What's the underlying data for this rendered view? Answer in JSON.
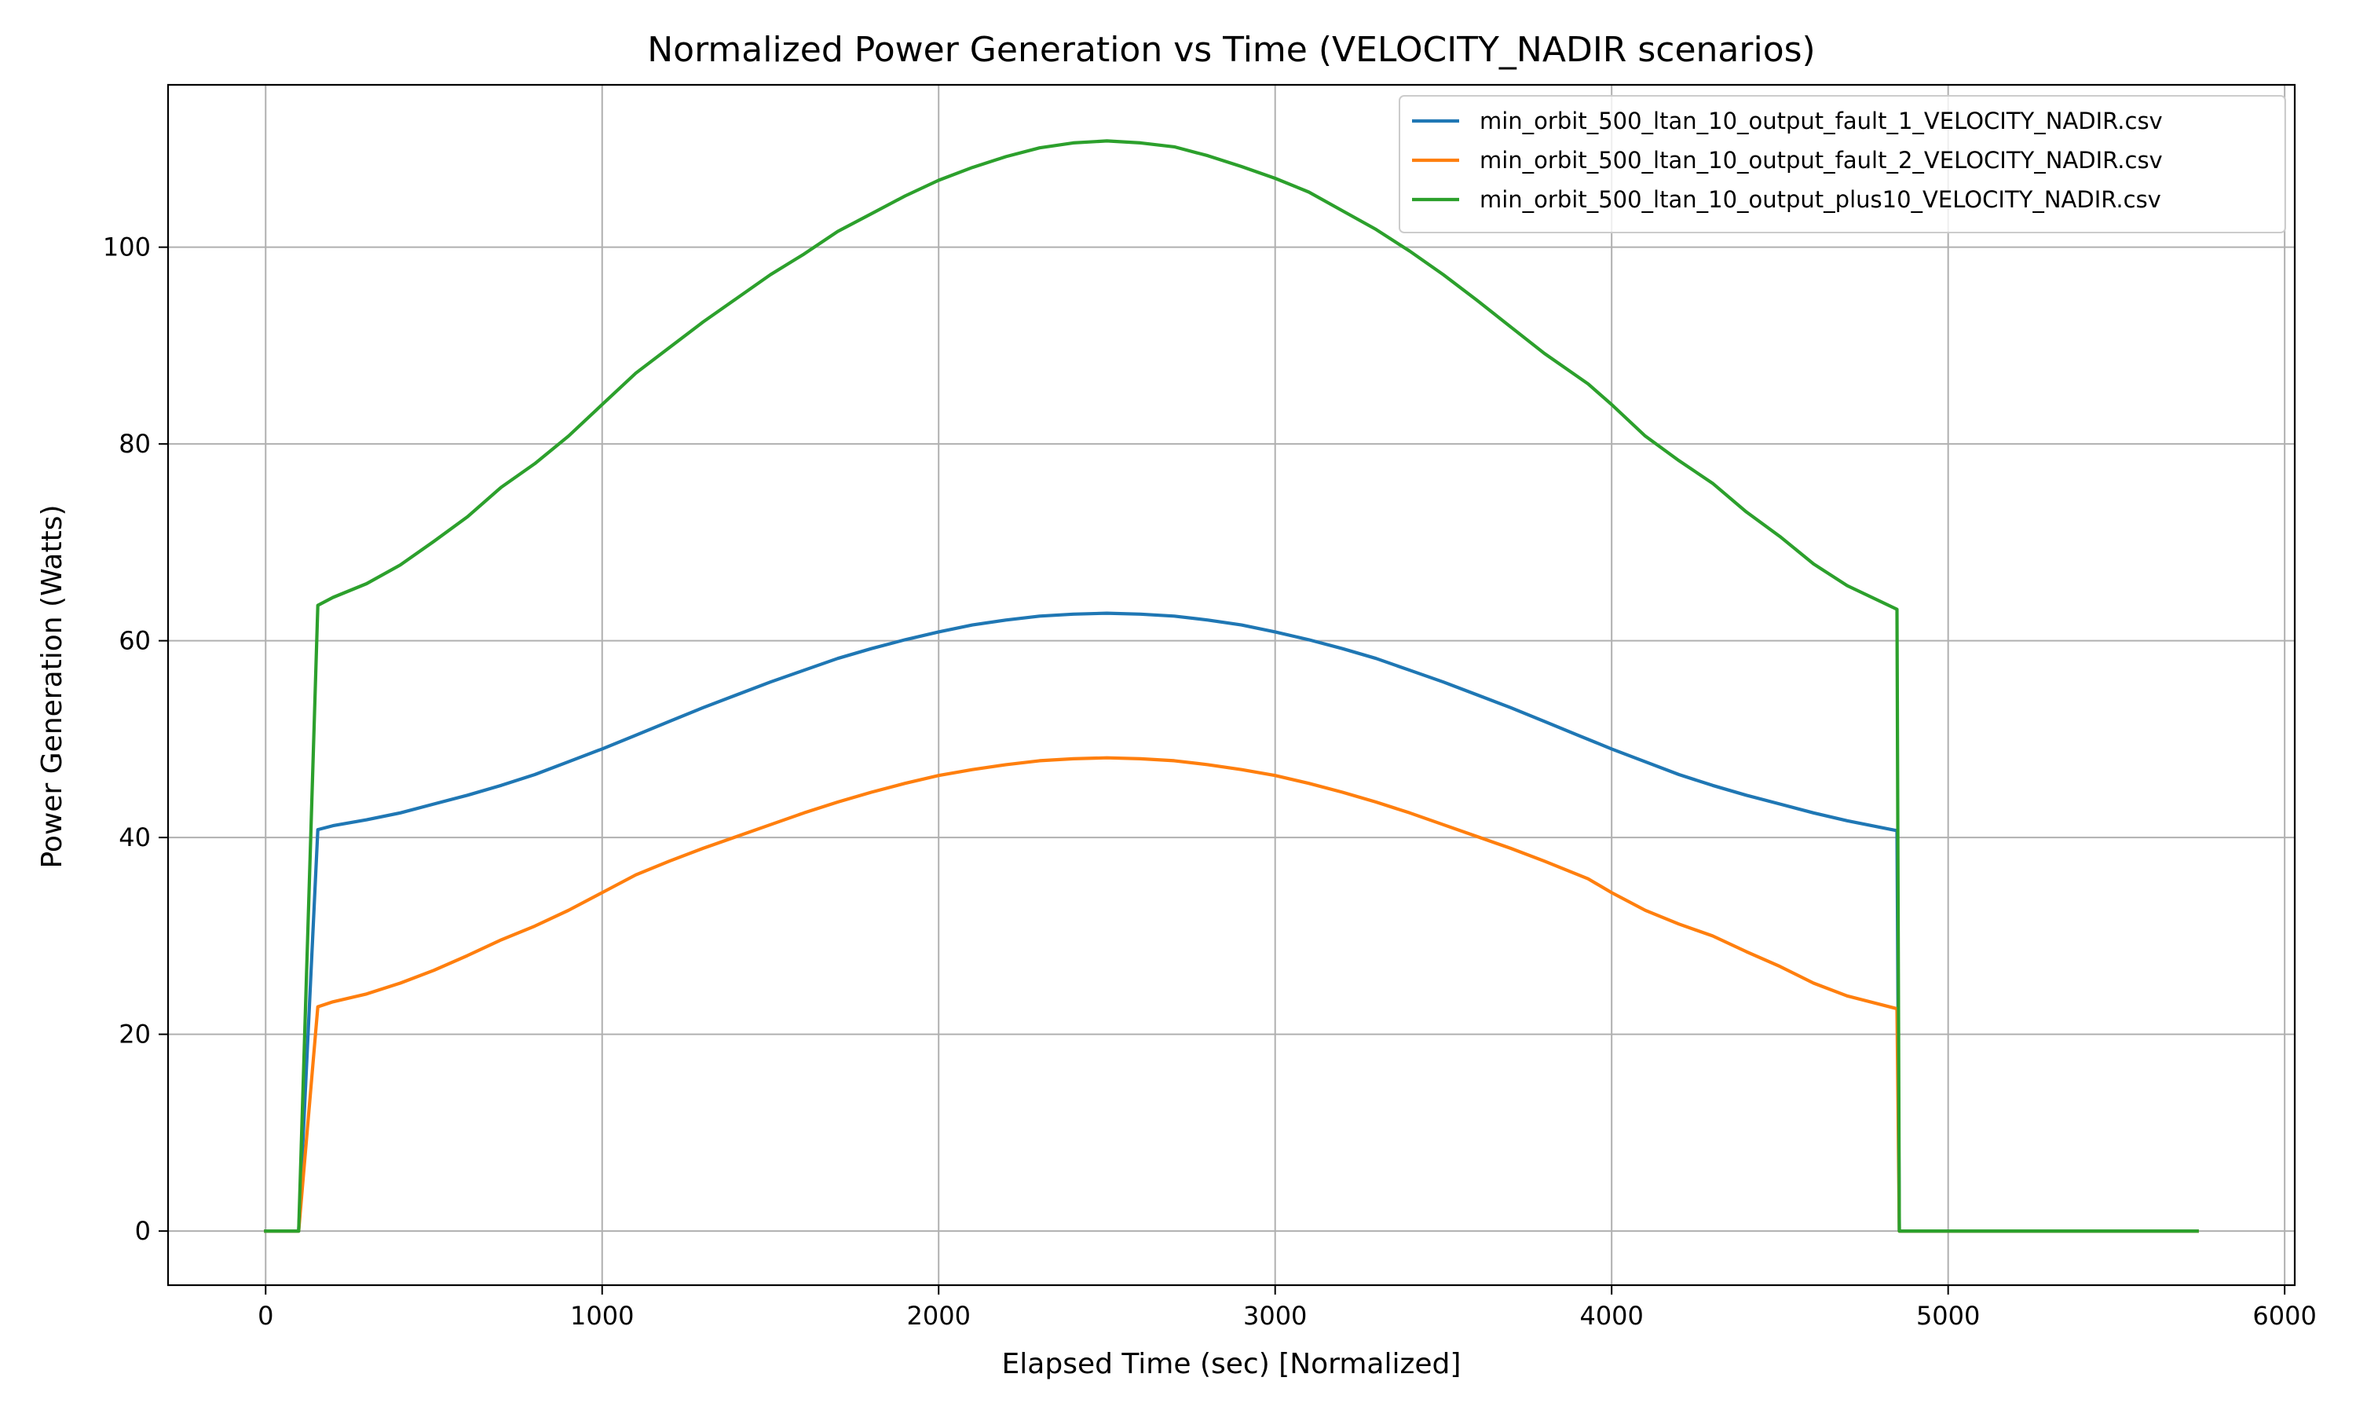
{
  "chart_data": {
    "type": "line",
    "title": "Normalized Power Generation vs Time (VELOCITY_NADIR scenarios)",
    "xlabel": "Elapsed Time (sec) [Normalized]",
    "ylabel": "Power Generation (Watts)",
    "xlim": [
      -290,
      6030
    ],
    "ylim": [
      -5.5,
      116.5
    ],
    "xticks": [
      0,
      1000,
      2000,
      3000,
      4000,
      5000,
      6000
    ],
    "yticks": [
      0,
      20,
      40,
      60,
      80,
      100
    ],
    "grid": true,
    "legend_position": "top-right",
    "series": [
      {
        "name": "min_orbit_500_ltan_10_output_fault_1_VELOCITY_NADIR.csv",
        "color": "#1f77b4",
        "points": [
          [
            0,
            0
          ],
          [
            98,
            0
          ],
          [
            155,
            40.8
          ],
          [
            200,
            41.2
          ],
          [
            300,
            41.8
          ],
          [
            400,
            42.5
          ],
          [
            500,
            43.4
          ],
          [
            600,
            44.3
          ],
          [
            700,
            45.3
          ],
          [
            800,
            46.4
          ],
          [
            900,
            47.7
          ],
          [
            1000,
            49.0
          ],
          [
            1100,
            50.4
          ],
          [
            1200,
            51.8
          ],
          [
            1300,
            53.2
          ],
          [
            1400,
            54.5
          ],
          [
            1500,
            55.8
          ],
          [
            1600,
            57.0
          ],
          [
            1700,
            58.2
          ],
          [
            1800,
            59.2
          ],
          [
            1900,
            60.1
          ],
          [
            2000,
            60.9
          ],
          [
            2100,
            61.6
          ],
          [
            2200,
            62.1
          ],
          [
            2300,
            62.5
          ],
          [
            2400,
            62.7
          ],
          [
            2500,
            62.8
          ],
          [
            2600,
            62.7
          ],
          [
            2700,
            62.5
          ],
          [
            2800,
            62.1
          ],
          [
            2900,
            61.6
          ],
          [
            3000,
            60.9
          ],
          [
            3100,
            60.1
          ],
          [
            3200,
            59.2
          ],
          [
            3300,
            58.2
          ],
          [
            3400,
            57.0
          ],
          [
            3500,
            55.8
          ],
          [
            3600,
            54.5
          ],
          [
            3700,
            53.2
          ],
          [
            3800,
            51.8
          ],
          [
            3900,
            50.4
          ],
          [
            4000,
            49.0
          ],
          [
            4100,
            47.7
          ],
          [
            4200,
            46.4
          ],
          [
            4300,
            45.3
          ],
          [
            4400,
            44.3
          ],
          [
            4500,
            43.4
          ],
          [
            4600,
            42.5
          ],
          [
            4700,
            41.7
          ],
          [
            4848,
            40.7
          ],
          [
            4855,
            0
          ],
          [
            5000,
            0
          ],
          [
            5740,
            0
          ]
        ]
      },
      {
        "name": "min_orbit_500_ltan_10_output_fault_2_VELOCITY_NADIR.csv",
        "color": "#ff7f0e",
        "points": [
          [
            0,
            0
          ],
          [
            98,
            0
          ],
          [
            155,
            22.8
          ],
          [
            200,
            23.3
          ],
          [
            300,
            24.1
          ],
          [
            400,
            25.2
          ],
          [
            500,
            26.5
          ],
          [
            600,
            28.0
          ],
          [
            700,
            29.6
          ],
          [
            800,
            31.0
          ],
          [
            900,
            32.6
          ],
          [
            1000,
            34.4
          ],
          [
            1100,
            36.2
          ],
          [
            1200,
            37.6
          ],
          [
            1300,
            38.9
          ],
          [
            1400,
            40.1
          ],
          [
            1500,
            41.3
          ],
          [
            1600,
            42.5
          ],
          [
            1700,
            43.6
          ],
          [
            1800,
            44.6
          ],
          [
            1900,
            45.5
          ],
          [
            2000,
            46.3
          ],
          [
            2100,
            46.9
          ],
          [
            2200,
            47.4
          ],
          [
            2300,
            47.8
          ],
          [
            2400,
            48.0
          ],
          [
            2500,
            48.1
          ],
          [
            2600,
            48.0
          ],
          [
            2700,
            47.8
          ],
          [
            2800,
            47.4
          ],
          [
            2900,
            46.9
          ],
          [
            3000,
            46.3
          ],
          [
            3100,
            45.5
          ],
          [
            3200,
            44.6
          ],
          [
            3300,
            43.6
          ],
          [
            3400,
            42.5
          ],
          [
            3500,
            41.3
          ],
          [
            3600,
            40.1
          ],
          [
            3700,
            38.9
          ],
          [
            3800,
            37.6
          ],
          [
            3930,
            35.8
          ],
          [
            4000,
            34.4
          ],
          [
            4100,
            32.6
          ],
          [
            4200,
            31.2
          ],
          [
            4300,
            30.0
          ],
          [
            4400,
            28.4
          ],
          [
            4500,
            26.9
          ],
          [
            4600,
            25.2
          ],
          [
            4700,
            23.9
          ],
          [
            4848,
            22.6
          ],
          [
            4855,
            0
          ],
          [
            5000,
            0
          ],
          [
            5740,
            0
          ]
        ]
      },
      {
        "name": "min_orbit_500_ltan_10_output_plus10_VELOCITY_NADIR.csv",
        "color": "#2ca02c",
        "points": [
          [
            0,
            0
          ],
          [
            98,
            0
          ],
          [
            155,
            63.6
          ],
          [
            200,
            64.4
          ],
          [
            300,
            65.8
          ],
          [
            400,
            67.7
          ],
          [
            500,
            70.1
          ],
          [
            600,
            72.6
          ],
          [
            700,
            75.6
          ],
          [
            800,
            78.0
          ],
          [
            900,
            80.8
          ],
          [
            1000,
            84.0
          ],
          [
            1100,
            87.2
          ],
          [
            1200,
            89.8
          ],
          [
            1300,
            92.4
          ],
          [
            1400,
            94.8
          ],
          [
            1500,
            97.2
          ],
          [
            1600,
            99.3
          ],
          [
            1700,
            101.6
          ],
          [
            1800,
            103.4
          ],
          [
            1900,
            105.2
          ],
          [
            2000,
            106.8
          ],
          [
            2100,
            108.1
          ],
          [
            2200,
            109.2
          ],
          [
            2300,
            110.1
          ],
          [
            2400,
            110.6
          ],
          [
            2500,
            110.8
          ],
          [
            2600,
            110.6
          ],
          [
            2700,
            110.2
          ],
          [
            2800,
            109.3
          ],
          [
            2900,
            108.2
          ],
          [
            3000,
            107.0
          ],
          [
            3100,
            105.6
          ],
          [
            3200,
            103.7
          ],
          [
            3300,
            101.8
          ],
          [
            3400,
            99.6
          ],
          [
            3500,
            97.2
          ],
          [
            3600,
            94.6
          ],
          [
            3700,
            91.9
          ],
          [
            3800,
            89.2
          ],
          [
            3930,
            86.1
          ],
          [
            4000,
            84.0
          ],
          [
            4100,
            80.8
          ],
          [
            4200,
            78.3
          ],
          [
            4300,
            76.0
          ],
          [
            4400,
            73.1
          ],
          [
            4500,
            70.6
          ],
          [
            4600,
            67.8
          ],
          [
            4700,
            65.6
          ],
          [
            4848,
            63.2
          ],
          [
            4855,
            0
          ],
          [
            5000,
            0
          ],
          [
            5740,
            0
          ]
        ]
      }
    ]
  }
}
